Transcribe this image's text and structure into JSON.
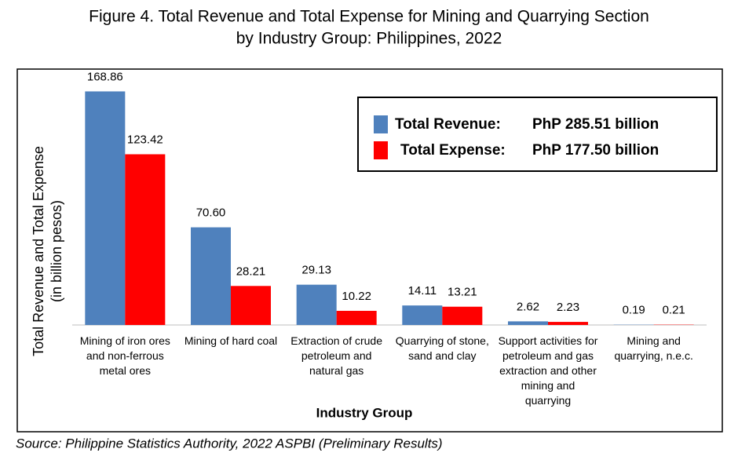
{
  "chart_data": {
    "type": "bar",
    "title": [
      "Figure 4. Total Revenue and Total Expense for Mining and Quarrying Section",
      "by Industry Group: Philippines, 2022"
    ],
    "ylabel": [
      "Total Revenue and Total Expense",
      "(in billion pesos)"
    ],
    "xlabel": "Industry Group",
    "source": "Source: Philippine Statistics Authority, 2022 ASPBI (Preliminary Results)",
    "categories": [
      "Mining of iron ores and non-ferrous metal ores",
      "Mining of hard coal",
      "Extraction of crude petroleum and natural gas",
      "Quarrying of stone, sand and clay",
      "Support activities for petroleum and gas extraction and other mining and quarrying",
      "Mining and quarrying, n.e.c."
    ],
    "series": [
      {
        "name": "Total Revenue:",
        "total": "PhP 285.51 billion",
        "color": "#4f81bd",
        "values": [
          168.86,
          70.6,
          29.13,
          14.11,
          2.62,
          0.19
        ],
        "value_labels": [
          "168.86",
          "70.60",
          "29.13",
          "14.11",
          "2.62",
          "0.19"
        ]
      },
      {
        "name": "Total Expense:",
        "total": "PhP 177.50 billion",
        "color": "#ff0000",
        "values": [
          123.42,
          28.21,
          10.22,
          13.21,
          2.23,
          0.21
        ],
        "value_labels": [
          "123.42",
          "28.21",
          "10.22",
          "13.21",
          "2.23",
          "0.21"
        ]
      }
    ],
    "ylim": [
      0,
      185
    ]
  }
}
